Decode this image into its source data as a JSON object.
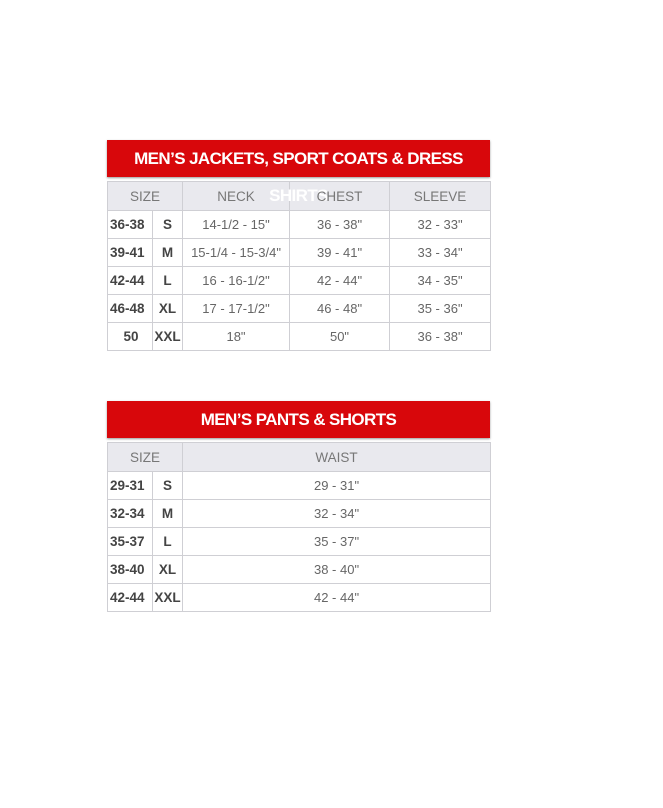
{
  "tables": [
    {
      "title": "MEN’S JACKETS, SPORT COATS & DRESS SHIRTS",
      "headers": [
        "SIZE",
        "NECK",
        "CHEST",
        "SLEEVE"
      ],
      "rows": [
        [
          "36-38",
          "S",
          "14-1/2 - 15\"",
          "36 - 38\"",
          "32 - 33\""
        ],
        [
          "39-41",
          "M",
          "15-1/4 - 15-3/4\"",
          "39 - 41\"",
          "33 - 34\""
        ],
        [
          "42-44",
          "L",
          "16 - 16-1/2\"",
          "42 - 44\"",
          "34 - 35\""
        ],
        [
          "46-48",
          "XL",
          "17 - 17-1/2\"",
          "46 - 48\"",
          "35 - 36\""
        ],
        [
          "50",
          "XXL",
          "18\"",
          "50\"",
          "36 - 38\""
        ]
      ]
    },
    {
      "title": "MEN’S PANTS & SHORTS",
      "headers": [
        "SIZE",
        "WAIST"
      ],
      "rows": [
        [
          "29-31",
          "S",
          "29 - 31\""
        ],
        [
          "32-34",
          "M",
          "32 - 34\""
        ],
        [
          "35-37",
          "L",
          "35 - 37\""
        ],
        [
          "38-40",
          "XL",
          "38 - 40\""
        ],
        [
          "42-44",
          "XXL",
          "42 - 44\""
        ]
      ]
    }
  ],
  "colors": {
    "header_red": "#d8070b",
    "header_gray": "#e9e9ee"
  }
}
